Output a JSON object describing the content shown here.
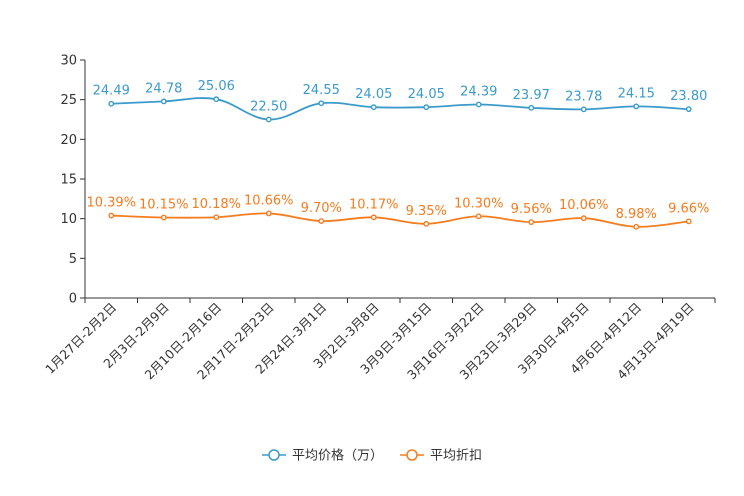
{
  "chart_data": {
    "type": "line",
    "title": "",
    "xlabel": "",
    "ylabel": "",
    "ylim": [
      0,
      30
    ],
    "yticks": [
      "0",
      "5",
      "10",
      "15",
      "20",
      "25",
      "30"
    ],
    "categories": [
      "1月27日-2月2日",
      "2月3日-2月9日",
      "2月10日-2月16日",
      "2月17日-2月23日",
      "2月24日-3月1日",
      "3月2日-3月8日",
      "3月9日-3月15日",
      "3月16日-3月22日",
      "3月23日-3月29日",
      "3月30日-4月5日",
      "4月6日-4月12日",
      "4月13日-4月19日"
    ],
    "series": [
      {
        "name": "平均价格（万）",
        "color": "#3a9bcb",
        "values": [
          24.49,
          24.78,
          25.06,
          22.5,
          24.55,
          24.05,
          24.05,
          24.39,
          23.97,
          23.78,
          24.15,
          23.8
        ],
        "labels": [
          "24.49",
          "24.78",
          "25.06",
          "22.50",
          "24.55",
          "24.05",
          "24.05",
          "24.39",
          "23.97",
          "23.78",
          "24.15",
          "23.80"
        ]
      },
      {
        "name": "平均折扣",
        "color": "#f57c1f",
        "values": [
          10.39,
          10.15,
          10.18,
          10.66,
          9.7,
          10.17,
          9.35,
          10.3,
          9.56,
          10.06,
          8.98,
          9.66
        ],
        "labels": [
          "10.39%",
          "10.15%",
          "10.18%",
          "10.66%",
          "9.70%",
          "10.17%",
          "9.35%",
          "10.30%",
          "9.56%",
          "10.06%",
          "8.98%",
          "9.66%"
        ]
      }
    ],
    "legend_position": "bottom-center",
    "grid": false
  }
}
